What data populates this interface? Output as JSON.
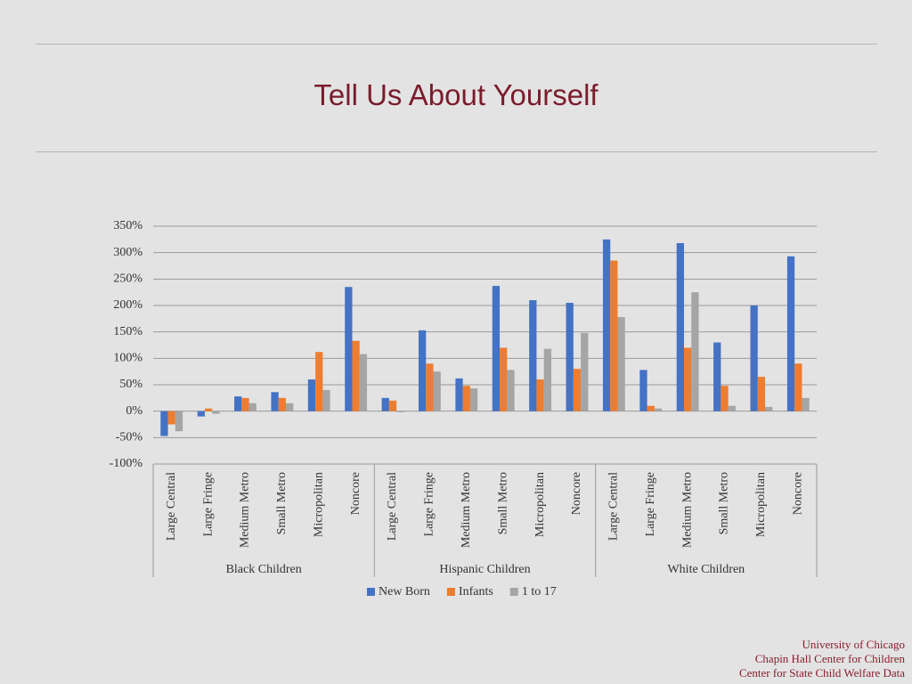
{
  "slide_title": "Tell Us About Yourself",
  "footer": [
    "University of Chicago",
    "Chapin Hall Center for Children",
    "Center for State Child Welfare Data"
  ],
  "chart_data": {
    "type": "bar",
    "groups": [
      {
        "name": "Black Children",
        "categories": [
          "Large Central",
          "Large Fringe",
          "Medium Metro",
          "Small Metro",
          "Micropolitan",
          "Noncore"
        ]
      },
      {
        "name": "Hispanic Children",
        "categories": [
          "Large Central",
          "Large Fringe",
          "Medium Metro",
          "Small Metro",
          "Micropolitan",
          "Noncore"
        ]
      },
      {
        "name": "White Children",
        "categories": [
          "Large Central",
          "Large Fringe",
          "Medium Metro",
          "Small Metro",
          "Micropolitan",
          "Noncore"
        ]
      }
    ],
    "series": [
      {
        "name": "New Born",
        "color": "#4472c4",
        "values": [
          -47,
          -10,
          28,
          36,
          60,
          235,
          25,
          153,
          62,
          237,
          210,
          205,
          325,
          78,
          318,
          130,
          200,
          293
        ]
      },
      {
        "name": "Infants",
        "color": "#ed7d31",
        "values": [
          -25,
          5,
          25,
          25,
          112,
          133,
          20,
          90,
          48,
          120,
          60,
          80,
          285,
          10,
          120,
          48,
          65,
          90
        ]
      },
      {
        "name": "1 to 17",
        "color": "#a5a5a5",
        "values": [
          -38,
          -5,
          15,
          15,
          40,
          108,
          -2,
          75,
          43,
          78,
          118,
          148,
          178,
          5,
          225,
          10,
          8,
          25
        ]
      }
    ],
    "ylim": [
      -100,
      350
    ],
    "yticks": [
      {
        "value": -100,
        "label": "-100%"
      },
      {
        "value": -50,
        "label": "-50%"
      },
      {
        "value": 0,
        "label": "0%"
      },
      {
        "value": 50,
        "label": "50%"
      },
      {
        "value": 100,
        "label": "100%"
      },
      {
        "value": 150,
        "label": "150%"
      },
      {
        "value": 200,
        "label": "200%"
      },
      {
        "value": 250,
        "label": "250%"
      },
      {
        "value": 300,
        "label": "300%"
      },
      {
        "value": 350,
        "label": "350%"
      }
    ],
    "grid": true
  }
}
